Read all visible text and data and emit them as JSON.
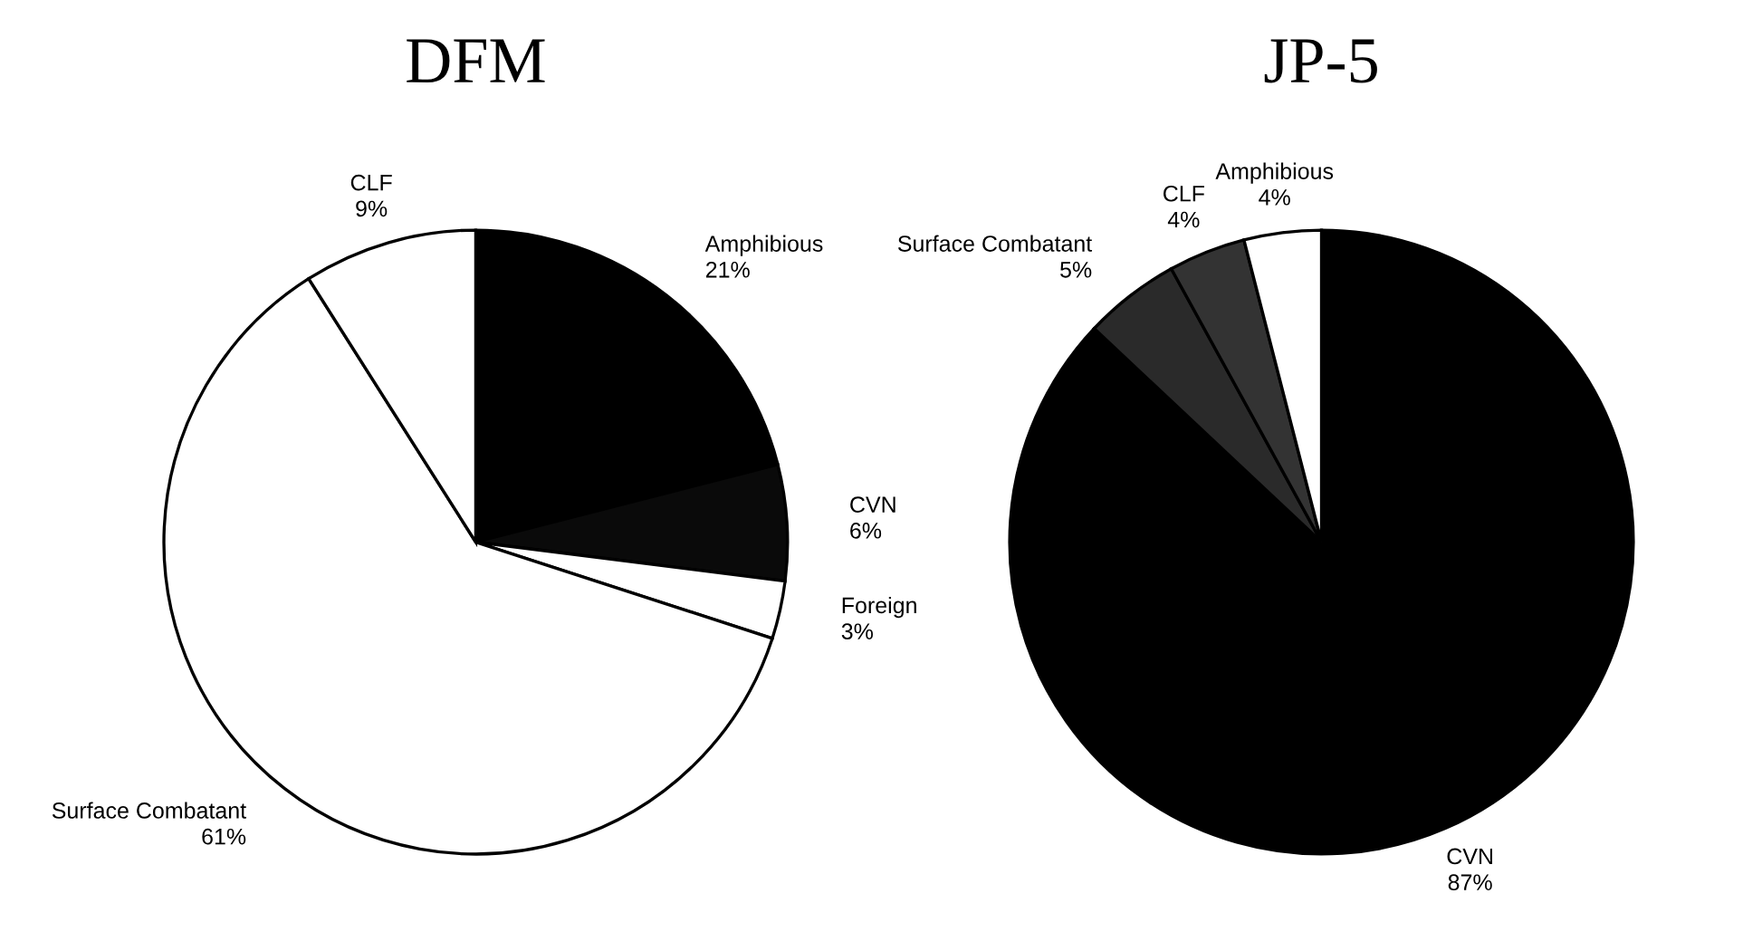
{
  "chart_data": [
    {
      "type": "pie",
      "title": "DFM",
      "categories": [
        "Amphibious",
        "CVN",
        "Foreign",
        "Surface Combatant",
        "CLF"
      ],
      "values": [
        21,
        6,
        3,
        61,
        9
      ],
      "value_labels": [
        "21%",
        "6%",
        "3%",
        "61%",
        "9%"
      ],
      "colors": [
        "#000000",
        "#0a0a0a",
        "#ffffff",
        "#ffffff",
        "#ffffff"
      ],
      "legend": false
    },
    {
      "type": "pie",
      "title": "JP-5",
      "categories": [
        "CVN",
        "Surface Combatant",
        "CLF",
        "Amphibious"
      ],
      "values": [
        87,
        5,
        4,
        4
      ],
      "value_labels": [
        "87%",
        "5%",
        "4%",
        "4%"
      ],
      "colors": [
        "#000000",
        "#2a2a2a",
        "#333333",
        "#ffffff"
      ],
      "legend": false
    }
  ]
}
